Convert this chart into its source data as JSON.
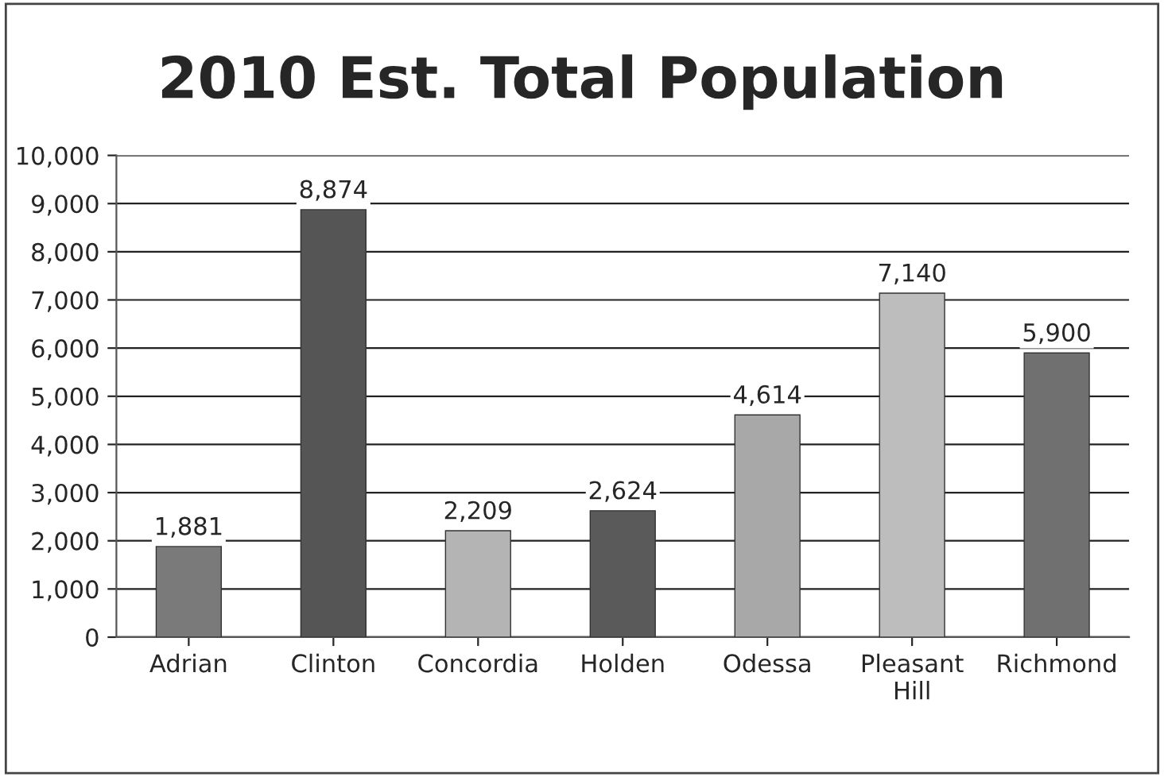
{
  "chart_data": {
    "type": "bar",
    "title": "2010 Est. Total Population",
    "categories": [
      "Adrian",
      "Clinton",
      "Concordia",
      "Holden",
      "Odessa",
      "Pleasant\nHill",
      "Richmond"
    ],
    "values": [
      1881,
      8874,
      2209,
      2624,
      4614,
      7140,
      5900
    ],
    "value_labels": [
      "1,881",
      "8,874",
      "2,209",
      "2,624",
      "4,614",
      "7,140",
      "5,900"
    ],
    "colors": [
      "#7a7a7a",
      "#555555",
      "#b4b4b4",
      "#5a5a5a",
      "#a8a8a8",
      "#bdbdbd",
      "#707070"
    ],
    "ylim": [
      0,
      10000
    ],
    "yticks": [
      {
        "value": 0,
        "label": "0"
      },
      {
        "value": 1000,
        "label": "1,000"
      },
      {
        "value": 2000,
        "label": "2,000"
      },
      {
        "value": 3000,
        "label": "3,000"
      },
      {
        "value": 4000,
        "label": "4,000"
      },
      {
        "value": 5000,
        "label": "5,000"
      },
      {
        "value": 6000,
        "label": "6,000"
      },
      {
        "value": 7000,
        "label": "7,000"
      },
      {
        "value": 8000,
        "label": "8,000"
      },
      {
        "value": 9000,
        "label": "9,000"
      },
      {
        "value": 10000,
        "label": "10,000"
      }
    ],
    "grid": "y",
    "legend": false
  }
}
